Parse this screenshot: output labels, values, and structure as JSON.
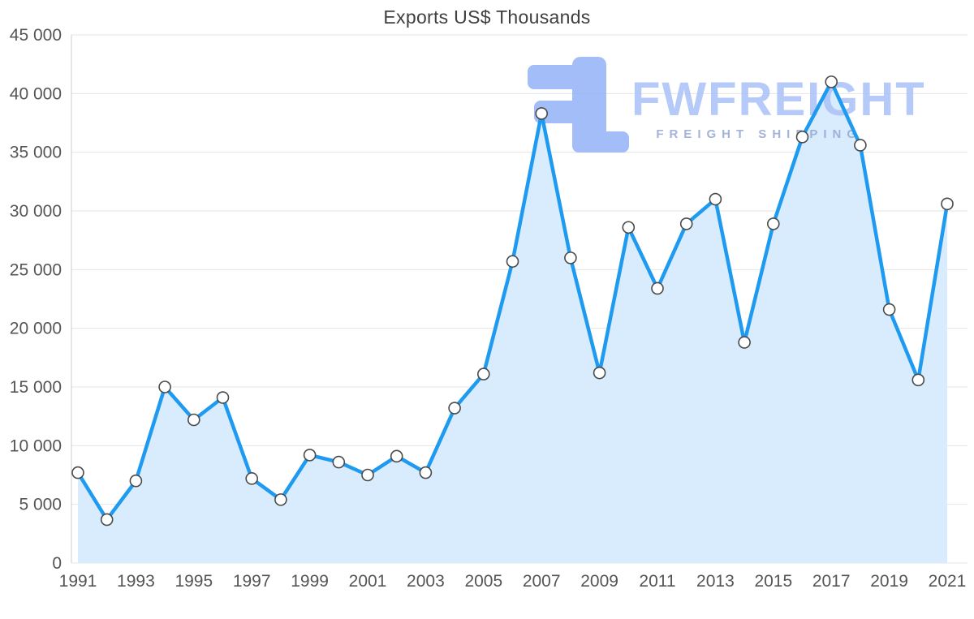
{
  "chart_data": {
    "type": "area",
    "title": "Exports US$ Thousands",
    "xlabel": "",
    "ylabel": "",
    "x": [
      1991,
      1992,
      1993,
      1994,
      1995,
      1996,
      1997,
      1998,
      1999,
      2000,
      2001,
      2002,
      2003,
      2004,
      2005,
      2006,
      2007,
      2008,
      2009,
      2010,
      2011,
      2012,
      2013,
      2014,
      2015,
      2016,
      2017,
      2018,
      2019,
      2020,
      2021
    ],
    "series": [
      {
        "name": "Exports US$ Thousands",
        "values": [
          7700,
          3700,
          7000,
          15000,
          12200,
          14100,
          7200,
          5400,
          9200,
          8600,
          7500,
          9100,
          7700,
          13200,
          16100,
          25700,
          38300,
          26000,
          16200,
          28600,
          23400,
          28900,
          31000,
          18800,
          28900,
          36300,
          41000,
          35600,
          21600,
          15600,
          30600
        ]
      }
    ],
    "xticks": [
      1991,
      1993,
      1995,
      1997,
      1999,
      2001,
      2003,
      2005,
      2007,
      2009,
      2011,
      2013,
      2015,
      2017,
      2019,
      2021
    ],
    "yticks": [
      0,
      5000,
      10000,
      15000,
      20000,
      25000,
      30000,
      35000,
      40000,
      45000
    ],
    "ytick_labels": [
      "0",
      "5 000",
      "10 000",
      "15 000",
      "20 000",
      "25 000",
      "30 000",
      "35 000",
      "40 000",
      "45 000"
    ],
    "ylim": [
      0,
      45000
    ],
    "grid": "horizontal",
    "legend": "none",
    "colors": {
      "line": "#1e9bf0",
      "area": "#d9ecfd",
      "marker_fill": "#ffffff",
      "marker_stroke": "#4a4a4a",
      "grid": "#e4e4e4",
      "axis_line": "#cccccc",
      "axis_text": "#555555",
      "title": "#3f3f3f"
    }
  },
  "watermark": {
    "brand": "FWFREIGHT",
    "tagline": "FREIGHT SHIPPING",
    "logo": "fw-logo-mark",
    "brand_color": "#a9c1f8",
    "tagline_color": "#95a6d2",
    "logo_color": "#93b2f7"
  }
}
